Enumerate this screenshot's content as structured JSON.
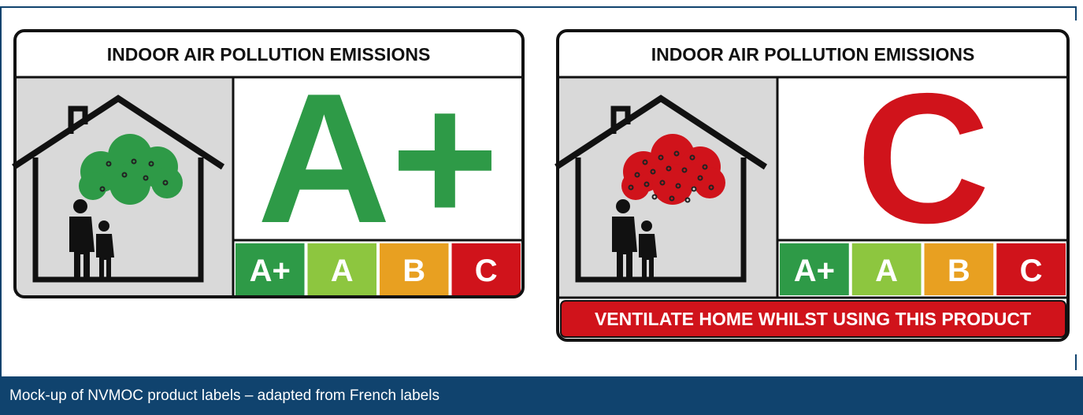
{
  "labels": [
    {
      "header": "INDOOR AIR POLLUTION EMISSIONS",
      "grade": "A+",
      "scale": [
        "A+",
        "A",
        "B",
        "C"
      ]
    },
    {
      "header": "INDOOR AIR POLLUTION EMISSIONS",
      "grade": "C",
      "scale": [
        "A+",
        "A",
        "B",
        "C"
      ],
      "warning": "VENTILATE HOME WHILST USING THIS PRODUCT"
    }
  ],
  "caption": "Mock-up of NVMOC product labels – adapted from French labels"
}
